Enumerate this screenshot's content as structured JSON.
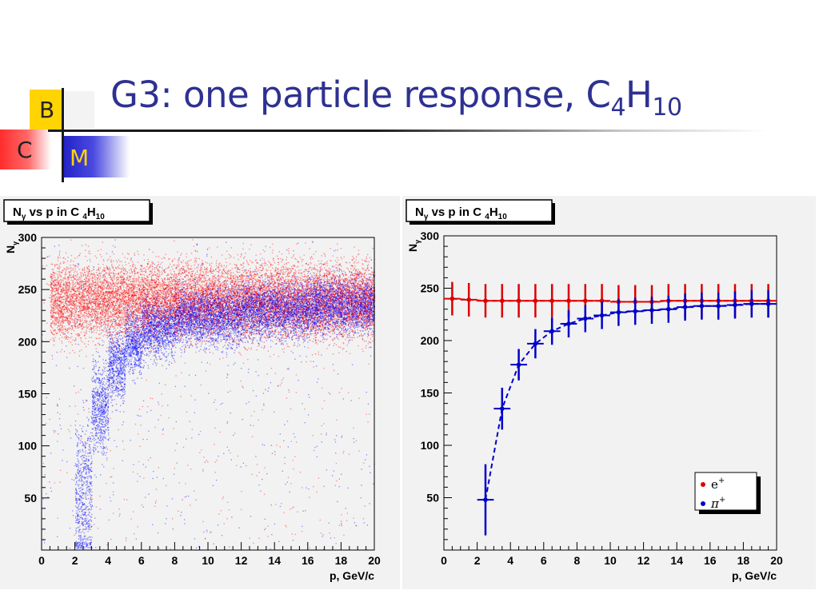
{
  "slide": {
    "title_main": "G3: one particle response, C",
    "title_sub1": "4",
    "title_h": "H",
    "title_sub2": "10",
    "logo": {
      "b": "B",
      "c": "C",
      "m": "M"
    }
  },
  "chart_data": [
    {
      "type": "scatter",
      "title": "N_γ vs p in C_4H_10",
      "xlabel": "p, GeV/c",
      "ylabel": "N_γ",
      "xlim": [
        0,
        20
      ],
      "ylim": [
        0,
        300
      ],
      "x_ticks": [
        "0",
        "2",
        "4",
        "6",
        "8",
        "10",
        "12",
        "14",
        "16",
        "18",
        "20"
      ],
      "y_ticks": [
        "50",
        "100",
        "150",
        "200",
        "250",
        "300"
      ],
      "grid": false,
      "series": [
        {
          "color": "#ff0000",
          "bands": [
            [
              0.5,
              20,
              240,
              18
            ]
          ]
        },
        {
          "color": "#0000ff",
          "bands": [
            [
              2,
              3,
              50,
              40
            ],
            [
              3,
              4,
              137,
              22
            ],
            [
              4,
              5,
              178,
              18
            ],
            [
              5,
              6,
              198,
              15
            ],
            [
              6,
              8,
              213,
              14
            ],
            [
              8,
              12,
              225,
              13
            ],
            [
              12,
              16,
              231,
              13
            ],
            [
              16,
              20,
              235,
              13
            ]
          ]
        }
      ]
    },
    {
      "type": "line",
      "title": "N_γ vs p in C_4H_10",
      "xlabel": "p, GeV/c",
      "ylabel": "N_γ",
      "xlim": [
        0,
        20
      ],
      "ylim": [
        0,
        300
      ],
      "x_ticks": [
        "0",
        "2",
        "4",
        "6",
        "8",
        "10",
        "12",
        "14",
        "16",
        "18",
        "20"
      ],
      "y_ticks": [
        "50",
        "100",
        "150",
        "200",
        "250",
        "300"
      ],
      "grid": false,
      "legend_position": "bottom-right",
      "legend": [
        {
          "base": "e",
          "sup": "+",
          "italic": false,
          "color": "#dd0000"
        },
        {
          "base": "π",
          "sup": "+",
          "italic": true,
          "color": "#0000cc"
        }
      ],
      "series": [
        {
          "color": "#dd0000",
          "x": [
            0.5,
            1.5,
            2.5,
            3.5,
            4.5,
            5.5,
            6.5,
            7.5,
            8.5,
            9.5,
            10.5,
            11.5,
            12.5,
            13.5,
            14.5,
            15.5,
            16.5,
            17.5,
            18.5,
            19.5
          ],
          "y": [
            240,
            239,
            238,
            238,
            238,
            238,
            238,
            238,
            238,
            238,
            237,
            237,
            237,
            238,
            238,
            238,
            238,
            238,
            238,
            238
          ],
          "err": 16
        },
        {
          "color": "#0000cc",
          "x": [
            2.5,
            3.5,
            4.5,
            5.5,
            6.5,
            7.5,
            8.5,
            9.5,
            10.5,
            11.5,
            12.5,
            13.5,
            14.5,
            15.5,
            16.5,
            17.5,
            18.5,
            19.5
          ],
          "y": [
            48,
            135,
            177,
            197,
            209,
            216,
            221,
            224,
            227,
            228,
            229,
            230,
            232,
            233,
            233,
            234,
            235,
            235
          ],
          "err": [
            34,
            20,
            15,
            14,
            13,
            13,
            13,
            13,
            13,
            13,
            13,
            13,
            13,
            13,
            13,
            13,
            13,
            13
          ]
        }
      ]
    }
  ]
}
